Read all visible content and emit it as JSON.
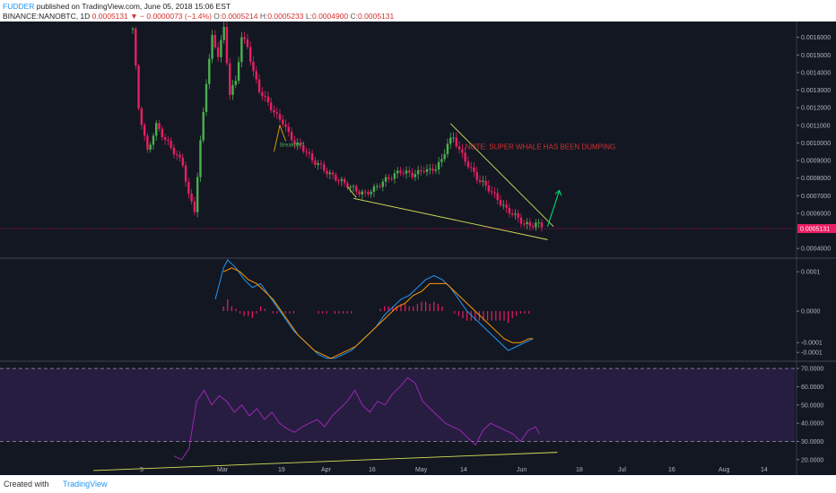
{
  "header": {
    "author": "FUDDER",
    "published": " published on TradingView.com, June 05, 2018 15:06 EST",
    "symbol": "BINANCE:NANOBTC, 1D",
    "last": "0.0005131",
    "change": "− 0.0000073 (−1.4%)",
    "o_label": "O:",
    "o": "0.0005214",
    "h_label": "H:",
    "h": "0.0005233",
    "l_label": "L:",
    "l": "0.0004900",
    "c_label": "C:",
    "c": "0.0005131"
  },
  "footer": {
    "created": "Created with",
    "brand": "TradingView"
  },
  "colors": {
    "bg": "#131722",
    "up": "#4caf50",
    "down": "#e91e63",
    "annotation": "#d32f2f",
    "trend": "#d4e157",
    "rsi": "#9c27b0",
    "macd": "#2196f3",
    "signal": "#ff9800",
    "price": "#e91e63"
  },
  "chart_data": [
    {
      "type": "candlestick",
      "pane": "price",
      "symbol": "NANOBTC",
      "y_ticks": [
        "0.0016000",
        "0.0015000",
        "0.0014000",
        "0.0013000",
        "0.0012000",
        "0.0011000",
        "0.0010000",
        "0.0009000",
        "0.0008000",
        "0.0007000",
        "0.0006000",
        "0.0004000"
      ],
      "last_price_label": "0.0005131",
      "ylim": [
        0.00035,
        0.00168
      ],
      "x_ticks": [
        "5",
        "Mar",
        "19",
        "Apr",
        "16",
        "May",
        "14",
        "Jun",
        "18",
        "Jul",
        "16",
        "Aug",
        "14"
      ],
      "close_path": [
        [
          0,
          0.00165
        ],
        [
          2,
          0.0012
        ],
        [
          5,
          0.00095
        ],
        [
          8,
          0.0011
        ],
        [
          11,
          0.00102
        ],
        [
          14,
          0.00095
        ],
        [
          17,
          0.00088
        ],
        [
          19,
          0.0007
        ],
        [
          21,
          0.00062
        ],
        [
          23,
          0.001
        ],
        [
          25,
          0.00135
        ],
        [
          27,
          0.0016
        ],
        [
          29,
          0.0015
        ],
        [
          31,
          0.00165
        ],
        [
          33,
          0.00128
        ],
        [
          35,
          0.00135
        ],
        [
          37,
          0.0016
        ],
        [
          39,
          0.00155
        ],
        [
          41,
          0.0014
        ],
        [
          43,
          0.0013
        ],
        [
          45,
          0.00125
        ],
        [
          47,
          0.0012
        ],
        [
          49,
          0.00115
        ],
        [
          51,
          0.00112
        ],
        [
          53,
          0.00105
        ],
        [
          55,
          0.001
        ],
        [
          57,
          0.00098
        ],
        [
          59,
          0.00095
        ],
        [
          61,
          0.0009
        ],
        [
          63,
          0.00088
        ],
        [
          65,
          0.00085
        ],
        [
          67,
          0.00082
        ],
        [
          69,
          0.0008
        ],
        [
          71,
          0.00078
        ],
        [
          73,
          0.00076
        ],
        [
          75,
          0.00074
        ],
        [
          77,
          0.00072
        ],
        [
          79,
          0.00071
        ],
        [
          81,
          0.00073
        ],
        [
          83,
          0.00075
        ],
        [
          85,
          0.00078
        ],
        [
          87,
          0.0008
        ],
        [
          89,
          0.00082
        ],
        [
          91,
          0.00084
        ],
        [
          93,
          0.00083
        ],
        [
          95,
          0.00082
        ],
        [
          97,
          0.00083
        ],
        [
          99,
          0.00085
        ],
        [
          101,
          0.00084
        ],
        [
          103,
          0.00086
        ],
        [
          105,
          0.0009
        ],
        [
          107,
          0.001
        ],
        [
          109,
          0.00103
        ],
        [
          111,
          0.00096
        ],
        [
          113,
          0.0009
        ],
        [
          115,
          0.00085
        ],
        [
          117,
          0.0008
        ],
        [
          119,
          0.00077
        ],
        [
          121,
          0.00074
        ],
        [
          123,
          0.0007
        ],
        [
          125,
          0.00066
        ],
        [
          127,
          0.00062
        ],
        [
          129,
          0.0006
        ],
        [
          131,
          0.00057
        ],
        [
          133,
          0.00054
        ],
        [
          135,
          0.00053
        ],
        [
          137,
          0.00054
        ],
        [
          139,
          0.00053
        ],
        [
          140,
          0.000513
        ]
      ],
      "annotations": [
        "NOTE: SUPER WHALE HAS BEEN DUMPING",
        "Breakout?"
      ]
    },
    {
      "type": "line",
      "pane": "macd",
      "y_ticks": [
        "0.0001",
        "0.0000",
        "-0.0001",
        "-0.0001"
      ],
      "ylim": [
        -0.000125,
        0.00013
      ],
      "series": [
        {
          "values": [
            [
              20,
              3e-05
            ],
            [
              21,
              7e-05
            ],
            [
              22,
              0.00011
            ],
            [
              23,
              0.00013
            ],
            [
              25,
              0.00011
            ],
            [
              27,
              8e-05
            ],
            [
              29,
              6e-05
            ],
            [
              31,
              7e-05
            ],
            [
              33,
              4e-05
            ],
            [
              35,
              1e-05
            ],
            [
              37,
              -2e-05
            ],
            [
              39,
              -5e-05
            ],
            [
              41,
              -7e-05
            ],
            [
              43,
              -9e-05
            ],
            [
              45,
              -0.00011
            ],
            [
              47,
              -0.00012
            ],
            [
              49,
              -0.00012
            ],
            [
              51,
              -0.00011
            ],
            [
              53,
              -0.0001
            ],
            [
              55,
              -8e-05
            ],
            [
              57,
              -6e-05
            ],
            [
              59,
              -4e-05
            ],
            [
              61,
              -1e-05
            ],
            [
              63,
              1e-05
            ],
            [
              65,
              3e-05
            ],
            [
              67,
              4e-05
            ],
            [
              69,
              6e-05
            ],
            [
              71,
              8e-05
            ],
            [
              73,
              9e-05
            ],
            [
              75,
              8e-05
            ],
            [
              77,
              6e-05
            ],
            [
              79,
              3e-05
            ],
            [
              81,
              0.0
            ],
            [
              83,
              -2e-05
            ],
            [
              85,
              -4e-05
            ],
            [
              87,
              -6e-05
            ],
            [
              89,
              -8e-05
            ],
            [
              91,
              -0.0001
            ],
            [
              93,
              -9e-05
            ],
            [
              95,
              -8e-05
            ],
            [
              97,
              -7e-05
            ]
          ]
        },
        {
          "values": [
            [
              22,
              0.0001
            ],
            [
              24,
              0.00011
            ],
            [
              26,
              0.0001
            ],
            [
              28,
              8e-05
            ],
            [
              30,
              7e-05
            ],
            [
              32,
              5e-05
            ],
            [
              34,
              3e-05
            ],
            [
              36,
              0.0
            ],
            [
              38,
              -3e-05
            ],
            [
              40,
              -6e-05
            ],
            [
              42,
              -8e-05
            ],
            [
              44,
              -0.0001
            ],
            [
              46,
              -0.00011
            ],
            [
              48,
              -0.00012
            ],
            [
              50,
              -0.00011
            ],
            [
              52,
              -0.0001
            ],
            [
              54,
              -9e-05
            ],
            [
              56,
              -7e-05
            ],
            [
              58,
              -5e-05
            ],
            [
              60,
              -3e-05
            ],
            [
              62,
              -1e-05
            ],
            [
              64,
              1e-05
            ],
            [
              66,
              2e-05
            ],
            [
              68,
              4e-05
            ],
            [
              70,
              5e-05
            ],
            [
              72,
              7e-05
            ],
            [
              74,
              7e-05
            ],
            [
              76,
              7e-05
            ],
            [
              78,
              5e-05
            ],
            [
              80,
              3e-05
            ],
            [
              82,
              1e-05
            ],
            [
              84,
              -1e-05
            ],
            [
              86,
              -3e-05
            ],
            [
              88,
              -5e-05
            ],
            [
              90,
              -7e-05
            ],
            [
              92,
              -8e-05
            ],
            [
              94,
              -8e-05
            ],
            [
              96,
              -7e-05
            ],
            [
              97,
              -7e-05
            ]
          ]
        }
      ]
    },
    {
      "type": "line",
      "pane": "rsi",
      "y_ticks": [
        "70.0000",
        "60.0000",
        "50.0000",
        "40.0000",
        "30.0000",
        "20.0000"
      ],
      "ylim": [
        13,
        73
      ],
      "band": [
        30,
        70
      ],
      "series": [
        {
          "values": [
            [
              20,
              22
            ],
            [
              22,
              20
            ],
            [
              24,
              26
            ],
            [
              26,
              52
            ],
            [
              28,
              58
            ],
            [
              30,
              50
            ],
            [
              32,
              55
            ],
            [
              34,
              52
            ],
            [
              36,
              46
            ],
            [
              38,
              50
            ],
            [
              40,
              44
            ],
            [
              42,
              48
            ],
            [
              44,
              42
            ],
            [
              46,
              46
            ],
            [
              48,
              40
            ],
            [
              50,
              37
            ],
            [
              52,
              35
            ],
            [
              54,
              38
            ],
            [
              56,
              40
            ],
            [
              58,
              42
            ],
            [
              60,
              38
            ],
            [
              62,
              44
            ],
            [
              64,
              48
            ],
            [
              66,
              52
            ],
            [
              68,
              58
            ],
            [
              70,
              50
            ],
            [
              72,
              46
            ],
            [
              74,
              52
            ],
            [
              76,
              50
            ],
            [
              78,
              56
            ],
            [
              80,
              60
            ],
            [
              82,
              65
            ],
            [
              84,
              62
            ],
            [
              86,
              52
            ],
            [
              88,
              48
            ],
            [
              90,
              44
            ],
            [
              92,
              40
            ],
            [
              94,
              38
            ],
            [
              96,
              36
            ],
            [
              98,
              32
            ],
            [
              100,
              28
            ],
            [
              102,
              36
            ],
            [
              104,
              40
            ],
            [
              106,
              38
            ],
            [
              108,
              36
            ],
            [
              110,
              34
            ],
            [
              112,
              30
            ],
            [
              114,
              36
            ],
            [
              116,
              38
            ],
            [
              117,
              34
            ]
          ]
        }
      ],
      "trendline": [
        [
          20,
          14
        ],
        [
          117,
          24
        ]
      ]
    }
  ]
}
